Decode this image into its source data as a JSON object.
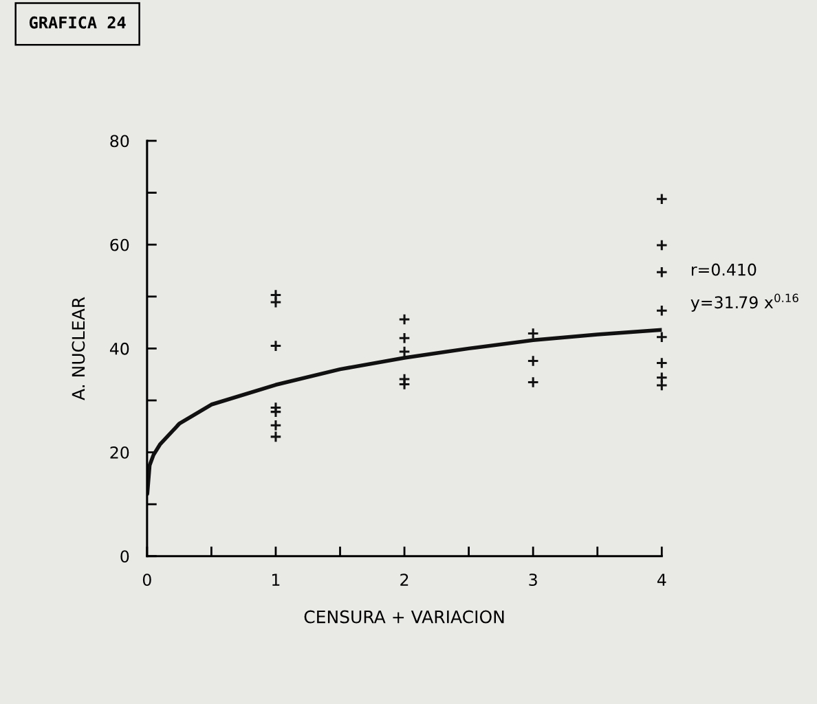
{
  "chart_data": {
    "type": "scatter",
    "title": "GRAFICA 24",
    "xlabel": "CENSURA + VARIACION",
    "ylabel": "A. NUCLEAR",
    "xlim": [
      0,
      4
    ],
    "ylim": [
      0,
      80
    ],
    "xticks": [
      0,
      {
        "value": 0.5,
        "label": null
      },
      1,
      {
        "value": 1.5,
        "label": null
      },
      2,
      {
        "value": 2.5,
        "label": null
      },
      3,
      {
        "value": 3.5,
        "label": null
      },
      4
    ],
    "yticks": [
      0,
      {
        "value": 10,
        "label": null
      },
      20,
      {
        "value": 30,
        "label": null
      },
      40,
      {
        "value": 50,
        "label": null
      },
      60,
      {
        "value": 70,
        "label": null
      },
      80
    ],
    "grid": false,
    "series": [
      {
        "color": "#111111",
        "marker": "cross",
        "x": [
          1,
          1,
          1,
          1,
          1,
          1,
          1,
          2,
          2,
          2,
          2,
          2,
          3,
          3,
          3,
          4,
          4,
          4,
          4,
          4,
          4,
          4,
          4
        ],
        "values": [
          50.3,
          48.9,
          40.5,
          28.6,
          27.8,
          25.2,
          23.0,
          45.6,
          42.0,
          39.4,
          34.1,
          33.1,
          42.9,
          37.6,
          33.5,
          68.8,
          59.9,
          54.7,
          47.3,
          42.2,
          37.2,
          34.4,
          32.9
        ]
      },
      {
        "type": "line",
        "color": "#111111",
        "marker": "none",
        "line_style": "solid",
        "x": [
          0.002,
          0.02,
          0.05,
          0.1,
          0.25,
          0.5,
          1,
          1.5,
          2,
          2.5,
          3,
          3.5,
          4
        ],
        "values": [
          12,
          17.5,
          19.5,
          21.5,
          25.5,
          29.2,
          33,
          36,
          38.2,
          40,
          41.6,
          42.7,
          43.6
        ]
      }
    ],
    "annotations": [
      "r=0.410",
      "y=31.79 x$^{0.16}$"
    ]
  }
}
